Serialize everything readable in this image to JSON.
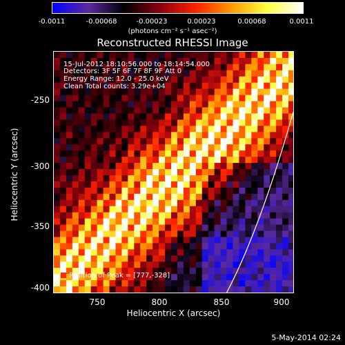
{
  "colorbar": {
    "ticks": [
      "-0.0011",
      "-0.00068",
      "-0.00023",
      "0.00023",
      "0.00068",
      "0.0011"
    ],
    "units": "(photons cm⁻² s⁻¹ asec⁻²)",
    "colors": [
      "#0000ff",
      "#5b2aa0",
      "#000000",
      "#8a0010",
      "#ff2000",
      "#ff9900",
      "#ffff40",
      "#ffffff"
    ]
  },
  "title": "Reconstructed RHESSI Image",
  "info": {
    "time": "15-Jul-2012 18:10:56.000 to 18:14:54.000",
    "detectors": "Detectors: 3F 5F 6F 7F 8F 9F Att 0",
    "energy": "Energy Range: 12.0 - 25.0 keV",
    "clean": "Clean    Total counts: 3.29e+04",
    "peak": "Position of Peak = [777,-328]"
  },
  "axes": {
    "xlabel": "Heliocentric X (arcsec)",
    "ylabel": "Heliocentric Y (arcsec)",
    "xticks": [
      "750",
      "800",
      "850",
      "900"
    ],
    "yticks": [
      "-250",
      "-300",
      "-350",
      "-400"
    ],
    "xlim": [
      717,
      907
    ],
    "ylim": [
      -405,
      -214
    ]
  },
  "timestamp": "5-May-2014 02:24"
}
